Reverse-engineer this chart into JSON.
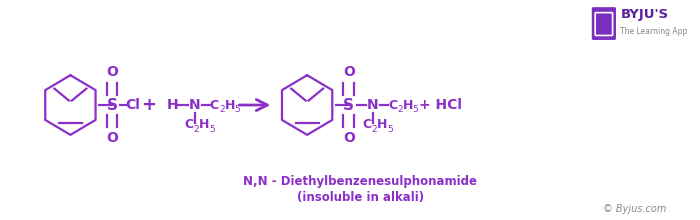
{
  "bg_color": "#ffffff",
  "purple": "#8B2FC9",
  "fig_width": 7.0,
  "fig_height": 2.2,
  "dpi": 100,
  "subtitle1": "N,N - Diethylbenzenesulphonamide",
  "subtitle2": "(insoluble in alkali)",
  "watermark": "© Byjus.com",
  "byju_text": "BYJU'S",
  "byju_sub": "The Learning App"
}
